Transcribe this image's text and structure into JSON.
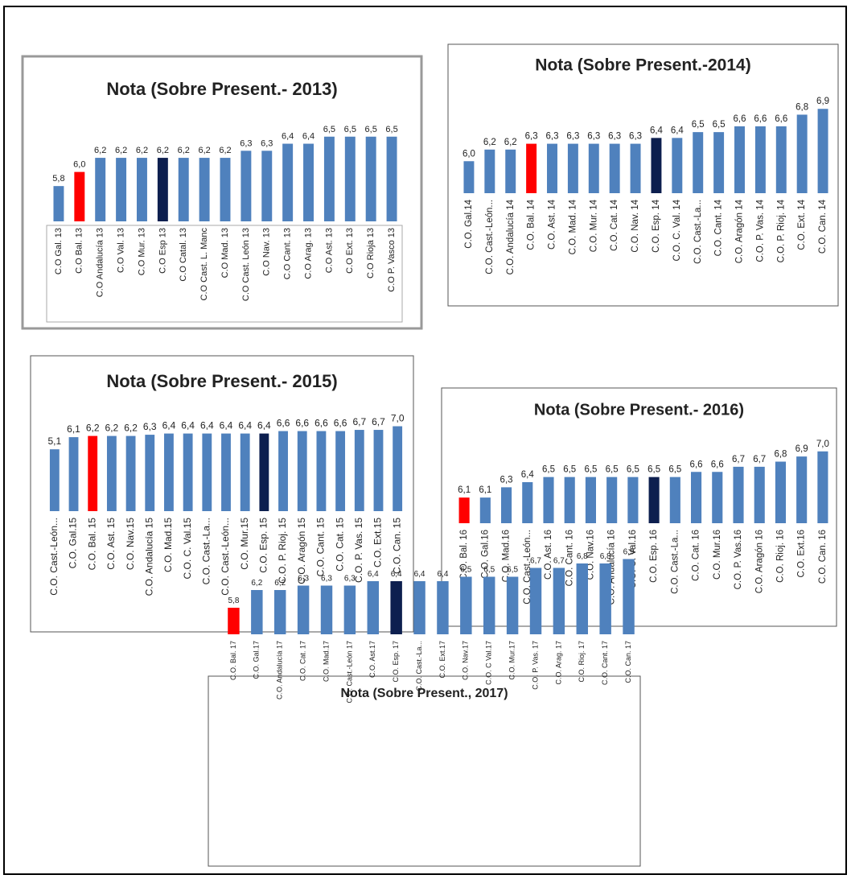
{
  "chart_data": [
    {
      "type": "bar",
      "title": "Nota (Sobre Present.- 2013)",
      "categories": [
        "C.O Gal. 13",
        "C.O Bal. 13",
        "C.O Andalucía 13",
        "C.O Val. 13",
        "C.O Mur. 13",
        "C.O Esp 13",
        "C.O Catal. 13",
        "C.O Cast. L. Manc",
        "C.O Mad. 13",
        "C.O Cast. León 13",
        "C.O Nav. 13",
        "C.O Cant. 13",
        "C.O Arag. 13",
        "C.O Ast. 13",
        "C.O Ext. 13",
        "C.O Rioja 13",
        "C.O P. Vasco 13"
      ],
      "values": [
        5.8,
        6.0,
        6.2,
        6.2,
        6.2,
        6.2,
        6.2,
        6.2,
        6.2,
        6.3,
        6.3,
        6.4,
        6.4,
        6.5,
        6.5,
        6.5,
        6.5
      ],
      "value_labels": [
        "5,8",
        "6,0",
        "6,2",
        "6,2",
        "6,2",
        "6,2",
        "6,2",
        "6,2",
        "6,2",
        "6,3",
        "6,3",
        "6,4",
        "6,4",
        "6,5",
        "6,5",
        "6,5",
        "6,5"
      ],
      "colors": [
        "#4f81bd",
        "#ff0000",
        "#4f81bd",
        "#4f81bd",
        "#4f81bd",
        "#0d1f4f",
        "#4f81bd",
        "#4f81bd",
        "#4f81bd",
        "#4f81bd",
        "#4f81bd",
        "#4f81bd",
        "#4f81bd",
        "#4f81bd",
        "#4f81bd",
        "#4f81bd",
        "#4f81bd"
      ],
      "ylim": [
        5.3,
        6.6
      ]
    },
    {
      "type": "bar",
      "title": "Nota (Sobre Present.-2014)",
      "categories": [
        "C.O. Gal.14",
        "C.O. Cast.-León...",
        "C.O. Andalucía 14",
        "C.O. Bal. 14",
        "C.O. Ast. 14",
        "C.O. Mad. 14",
        "C.O. Mur. 14",
        "C.O. Cat. 14",
        "C.O. Nav. 14",
        "C.O. Esp. 14",
        "C.O. C. Val. 14",
        "C.O. Cast.-La...",
        "C.O. Cant. 14",
        "C.O. Aragón 14",
        "C.O. P. Vas. 14",
        "C.O. P. Rioj. 14",
        "C.O. Ext. 14",
        "C.O. Can. 14"
      ],
      "values": [
        6.0,
        6.2,
        6.2,
        6.3,
        6.3,
        6.3,
        6.3,
        6.3,
        6.3,
        6.4,
        6.4,
        6.5,
        6.5,
        6.6,
        6.6,
        6.6,
        6.8,
        6.9
      ],
      "value_labels": [
        "6,0",
        "6,2",
        "6,2",
        "6,3",
        "6,3",
        "6,3",
        "6,3",
        "6,3",
        "6,3",
        "6,4",
        "6,4",
        "6,5",
        "6,5",
        "6,6",
        "6,6",
        "6,6",
        "6,8",
        "6,9"
      ],
      "colors": [
        "#4f81bd",
        "#4f81bd",
        "#4f81bd",
        "#ff0000",
        "#4f81bd",
        "#4f81bd",
        "#4f81bd",
        "#4f81bd",
        "#4f81bd",
        "#0d1f4f",
        "#4f81bd",
        "#4f81bd",
        "#4f81bd",
        "#4f81bd",
        "#4f81bd",
        "#4f81bd",
        "#4f81bd",
        "#4f81bd"
      ],
      "ylim": [
        5.45,
        7.0
      ]
    },
    {
      "type": "bar",
      "title": "Nota (Sobre Present.- 2015)",
      "categories": [
        "C.O. Cast.-León...",
        "C.O. Gal.15",
        "C.O. Bal. 15",
        "C.O. Ast. 15",
        "C.O. Nav.15",
        "C.O. Andalucía 15",
        "C.O. Mad.15",
        "C.O. C. Val.15",
        "C.O. Cast.-La...",
        "C.O. Cast.-León...",
        "C.O. Mur.15",
        "C.O. Esp. 15",
        "C.O. P. Rioj. 15",
        "C.O. Aragón 15",
        "C.O. Cant. 15",
        "C.O. Cat. 15",
        "C.O. P. Vas. 15",
        "C.O. Ext.15",
        "C.O. Can. 15"
      ],
      "values": [
        5.1,
        6.1,
        6.2,
        6.2,
        6.2,
        6.3,
        6.4,
        6.4,
        6.4,
        6.4,
        6.4,
        6.4,
        6.6,
        6.6,
        6.6,
        6.6,
        6.7,
        6.7,
        7.0
      ],
      "value_labels": [
        "5,1",
        "6,1",
        "6,2",
        "6,2",
        "6,2",
        "6,3",
        "6,4",
        "6,4",
        "6,4",
        "6,4",
        "6,4",
        "6,4",
        "6,6",
        "6,6",
        "6,6",
        "6,6",
        "6,7",
        "6,7",
        "7,0"
      ],
      "colors": [
        "#4f81bd",
        "#4f81bd",
        "#ff0000",
        "#4f81bd",
        "#4f81bd",
        "#4f81bd",
        "#4f81bd",
        "#4f81bd",
        "#4f81bd",
        "#4f81bd",
        "#4f81bd",
        "#0d1f4f",
        "#4f81bd",
        "#4f81bd",
        "#4f81bd",
        "#4f81bd",
        "#4f81bd",
        "#4f81bd",
        "#4f81bd"
      ],
      "ylim": [
        0,
        7.5
      ]
    },
    {
      "type": "bar",
      "title": "Nota (Sobre Present.- 2016)",
      "categories": [
        "C.O. Bal. 16",
        "C.O. Gal.16",
        "C.O. Mad.16",
        "C.O. Cast.-León...",
        "C.O. Ast. 16",
        "C.O. Cant. 16",
        "C.O. Nav.16",
        "C.O. Andalucía 16",
        "C.O. C. Val.16",
        "C.O. Esp. 16",
        "C.O. Cast.-La...",
        "C.O. Cat. 16",
        "C.O. Mur.16",
        "C.O. P. Vas.16",
        "C.O. Aragón 16",
        "C.O. Rioj. 16",
        "C.O. Ext.16",
        "C.O. Can. 16"
      ],
      "values": [
        6.1,
        6.1,
        6.3,
        6.4,
        6.5,
        6.5,
        6.5,
        6.5,
        6.5,
        6.5,
        6.5,
        6.6,
        6.6,
        6.7,
        6.7,
        6.8,
        6.9,
        7.0
      ],
      "value_labels": [
        "6,1",
        "6,1",
        "6,3",
        "6,4",
        "6,5",
        "6,5",
        "6,5",
        "6,5",
        "6,5",
        "6,5",
        "6,5",
        "6,6",
        "6,6",
        "6,7",
        "6,7",
        "6,8",
        "6,9",
        "7,0"
      ],
      "colors": [
        "#ff0000",
        "#4f81bd",
        "#4f81bd",
        "#4f81bd",
        "#4f81bd",
        "#4f81bd",
        "#4f81bd",
        "#4f81bd",
        "#4f81bd",
        "#0d1f4f",
        "#4f81bd",
        "#4f81bd",
        "#4f81bd",
        "#4f81bd",
        "#4f81bd",
        "#4f81bd",
        "#4f81bd",
        "#4f81bd"
      ],
      "ylim": [
        5.6,
        7.2
      ]
    },
    {
      "type": "bar",
      "title": "Nota (Sobre Present., 2017)",
      "categories": [
        "C.O. Bal. 17",
        "C.O. Gal.17",
        "C.O. Andalucía 17",
        "C.O. Cat. 17",
        "C.O. Mad.17",
        "C.O. Cast.-León 17",
        "C.O. Ast.17",
        "C.O. Esp. 17",
        "C.O. Cast.-La...",
        "C.O. Ext.17",
        "C.O. Nav.17",
        "C.O. C Val.17",
        "C.O. Mur.17",
        "C.O. P. Vas. 17",
        "C.O. Arag. 17",
        "C.O. Rioj. 17",
        "C.O. Cant. 17",
        "C.O. Can. 17"
      ],
      "values": [
        5.8,
        6.2,
        6.2,
        6.3,
        6.3,
        6.3,
        6.4,
        6.4,
        6.4,
        6.4,
        6.5,
        6.5,
        6.5,
        6.7,
        6.7,
        6.8,
        6.8,
        6.9
      ],
      "value_labels": [
        "5,8",
        "6,2",
        "6,2",
        "6,3",
        "6,3",
        "6,3",
        "6,4",
        "6,4",
        "6,4",
        "6,4",
        "6,5",
        "6,5",
        "6,5",
        "6,7",
        "6,7",
        "6,8",
        "6,8",
        "6,9"
      ],
      "colors": [
        "#ff0000",
        "#4f81bd",
        "#4f81bd",
        "#4f81bd",
        "#4f81bd",
        "#4f81bd",
        "#4f81bd",
        "#0d1f4f",
        "#4f81bd",
        "#4f81bd",
        "#4f81bd",
        "#4f81bd",
        "#4f81bd",
        "#4f81bd",
        "#4f81bd",
        "#4f81bd",
        "#4f81bd",
        "#4f81bd"
      ],
      "ylim": [
        5.2,
        7.0
      ]
    }
  ]
}
